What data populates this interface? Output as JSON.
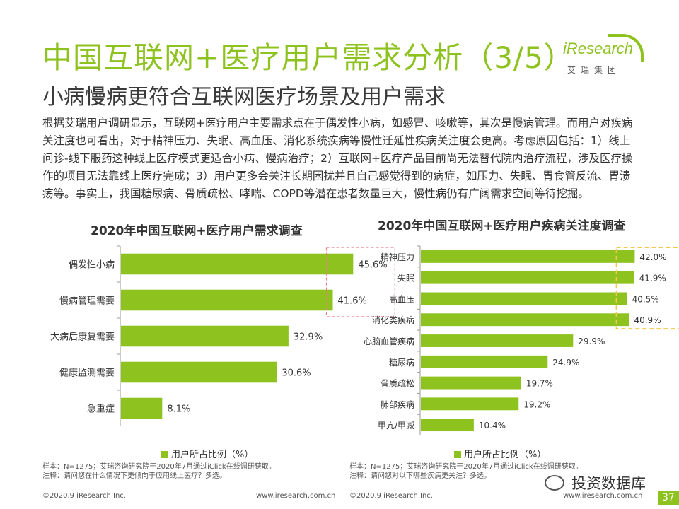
{
  "header": {
    "title": "中国互联网+医疗用户需求分析（3/5）",
    "subtitle": "小病慢病更符合互联网医疗场景及用户需求",
    "logo_word": "iResearch",
    "logo_sub": "艾瑞集团"
  },
  "body": {
    "paragraph": "根据艾瑞用户调研显示，互联网+医疗用户主要需求点在于偶发性小病，如感冒、咳嗽等，其次是慢病管理。而用户对疾病关注度也可看出，对于精神压力、失眠、高血压、消化系统疾病等慢性迁延性疾病关注度会更高。考虑原因包括：1）线上问诊-线下服药这种线上医疗模式更适合小病、慢病治疗；2）互联网+医疗产品目前尚无法替代院内治疗流程，涉及医疗操作的项目无法靠线上医疗完成；3）用户更多会关注长期困扰并且自己感觉得到的病症，如压力、失眠、胃食管反流、胃溃疡等。事实上，我国糖尿病、骨质疏松、哮喘、COPD等潜在患者数量巨大，慢性病仍有广阔需求空间等待挖掘。"
  },
  "colors": {
    "accent": "#8dc21f",
    "highlight_left": "#e87d8f",
    "highlight_right": "#f2c94c"
  },
  "chart_data": [
    {
      "type": "bar",
      "orientation": "horizontal",
      "title": "2020年中国互联网+医疗用户需求调查",
      "categories": [
        "偶发性小病",
        "慢病管理需要",
        "大病后康复需要",
        "健康监测需要",
        "急重症"
      ],
      "series": [
        {
          "name": "用户所占比例（%）",
          "values": [
            45.6,
            41.6,
            32.9,
            30.6,
            8.1
          ]
        }
      ],
      "data_labels": [
        "45.6%",
        "41.6%",
        "32.9%",
        "30.6%",
        "8.1%"
      ],
      "highlighted": [
        "偶发性小病",
        "慢病管理需要"
      ],
      "xlim": [
        0,
        50
      ],
      "legend": "bottom",
      "grid": false,
      "note": "样本：N=1275；艾瑞咨询研究院于2020年7月通过iClick在线调研获取。\n注释：请问您在什么情况下更倾向于应用线上医疗？多选。"
    },
    {
      "type": "bar",
      "orientation": "horizontal",
      "title": "2020年中国互联网+医疗用户疾病关注度调查",
      "categories": [
        "精神压力",
        "失眠",
        "高血压",
        "消化类疾病",
        "心脑血管疾病",
        "糖尿病",
        "骨质疏松",
        "肺部疾病",
        "甲亢/甲减"
      ],
      "series": [
        {
          "name": "用户所占比例（%）",
          "values": [
            42.0,
            41.9,
            40.5,
            40.9,
            29.9,
            24.9,
            19.7,
            19.2,
            10.4
          ]
        }
      ],
      "data_labels": [
        "42.0%",
        "41.9%",
        "40.5%",
        "40.9%",
        "29.9%",
        "24.9%",
        "19.7%",
        "19.2%",
        "10.4%"
      ],
      "highlighted": [
        "精神压力",
        "失眠",
        "高血压",
        "消化类疾病"
      ],
      "xlim": [
        0,
        50
      ],
      "legend": "bottom",
      "grid": false,
      "note": "样本：N=1275；艾瑞咨询研究院于2020年7月通过iClick在线调研获取。\n注释：请问您对以下哪些疾病更关注？多选。"
    }
  ],
  "footer": {
    "copyright_left": "©2020.9 iResearch Inc.",
    "url_left": "www.iresearch.com.cn",
    "copyright_right": "©2020.9 iResearch Inc.",
    "url_right": "www.iresearch.com.cn",
    "watermark": "投资数据库",
    "page": "37"
  }
}
